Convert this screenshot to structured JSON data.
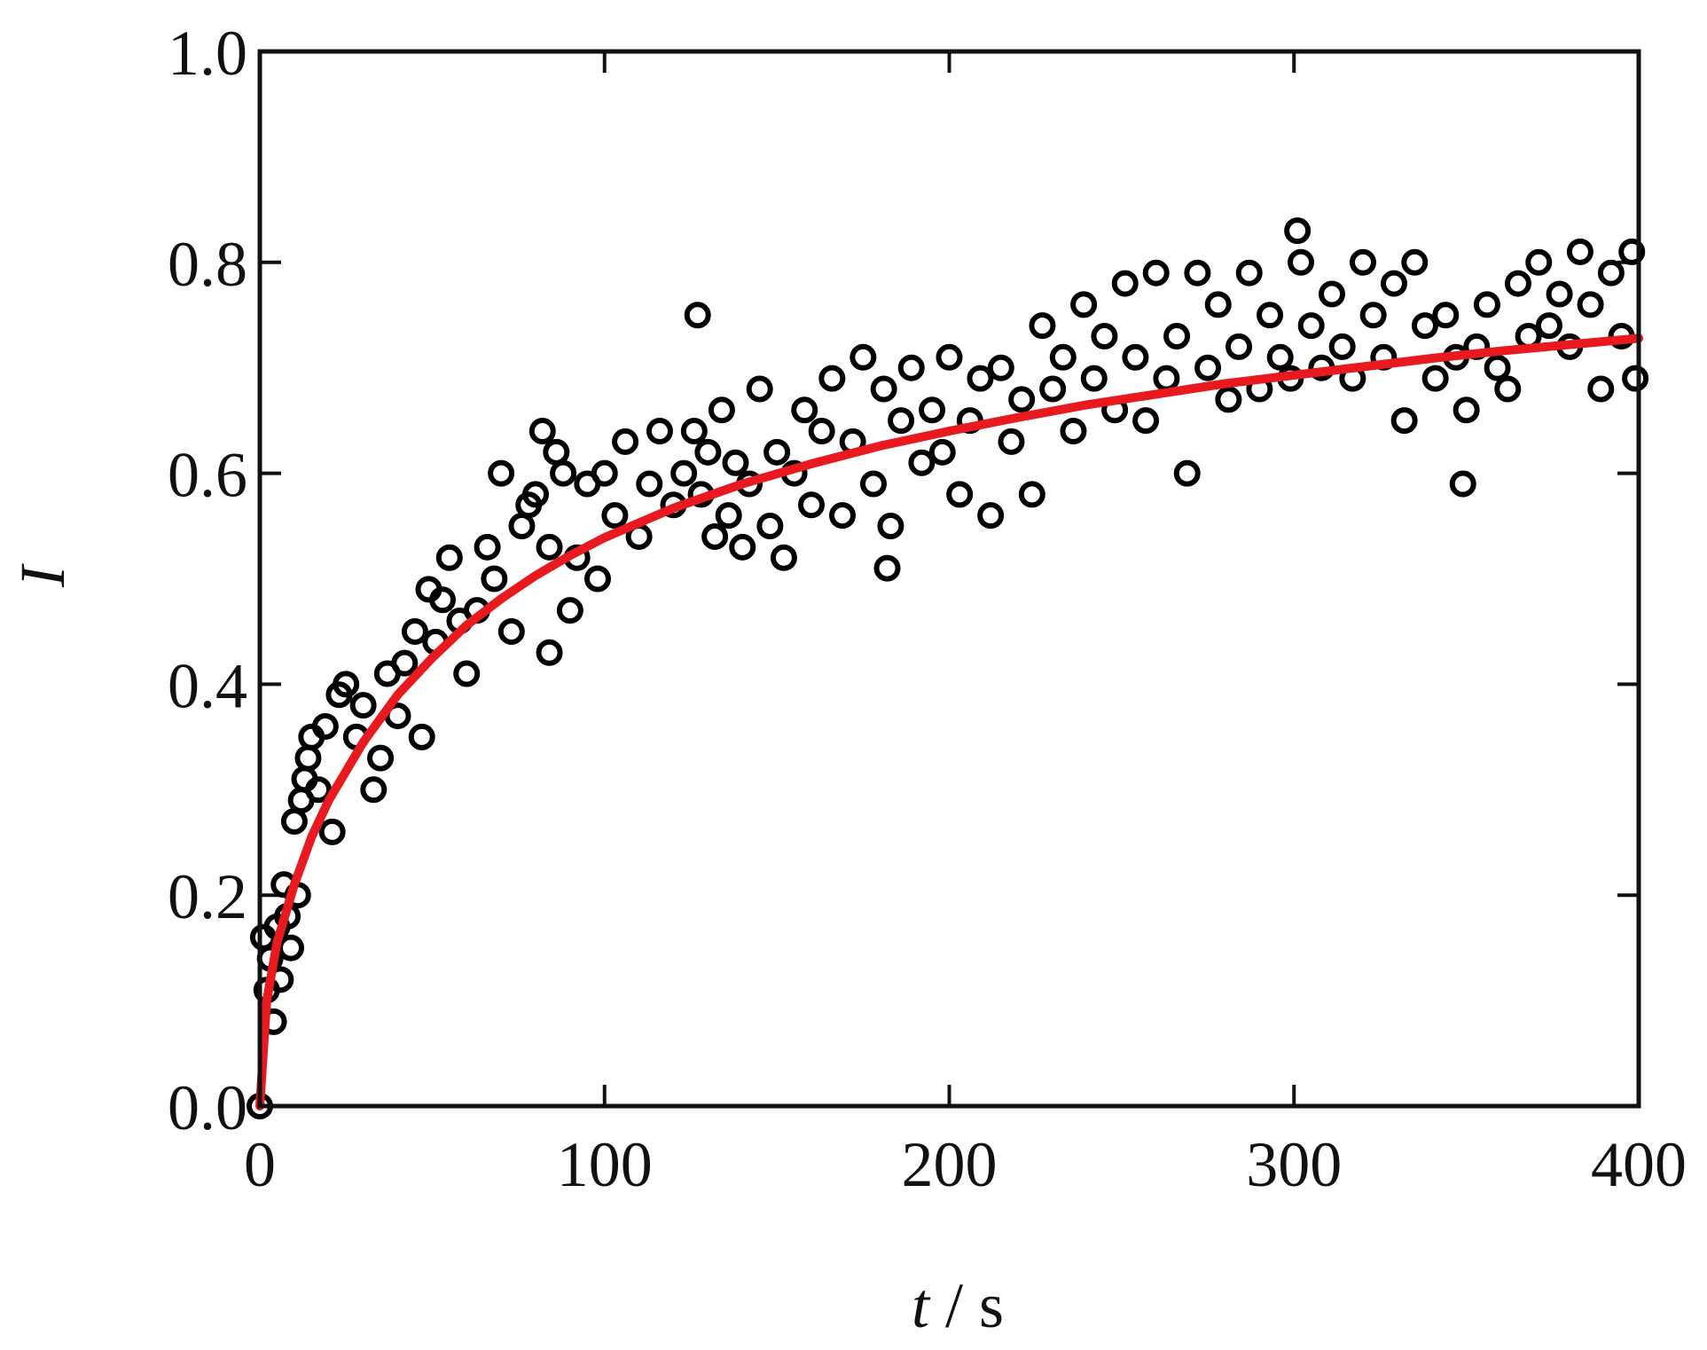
{
  "chart_data": {
    "type": "scatter",
    "xlabel_parts": [
      "t",
      " / ",
      "s"
    ],
    "ylabel": "I",
    "xlim": [
      0,
      400
    ],
    "ylim": [
      0.0,
      1.0
    ],
    "x_ticks": [
      0,
      100,
      200,
      300,
      400
    ],
    "x_tick_labels": [
      "0",
      "100",
      "200",
      "300",
      "400"
    ],
    "y_ticks": [
      0.0,
      0.2,
      0.4,
      0.6,
      0.8,
      1.0
    ],
    "y_tick_labels": [
      "0.0",
      "0.2",
      "0.4",
      "0.6",
      "0.8",
      "1.0"
    ],
    "grid": false,
    "colors": {
      "points": "#000000",
      "fit": "#e8191f",
      "axes": "#111111"
    },
    "series": [
      {
        "type": "scatter",
        "marker": "open-circle",
        "x": [
          0,
          1,
          2,
          3,
          4,
          5,
          6,
          7,
          8,
          9,
          10,
          11,
          12,
          13,
          14,
          15,
          17,
          19,
          21,
          23,
          25,
          28,
          30,
          33,
          35,
          37,
          40,
          42,
          45,
          47,
          49,
          51,
          53,
          55,
          58,
          60,
          63,
          66,
          68,
          70,
          73,
          76,
          78,
          80,
          82,
          84,
          86,
          88,
          90,
          92,
          95,
          98,
          100,
          103,
          106,
          110,
          113,
          116,
          120,
          123,
          126,
          128,
          130,
          132,
          134,
          136,
          138,
          140,
          142,
          145,
          148,
          150,
          152,
          155,
          158,
          160,
          163,
          166,
          169,
          172,
          175,
          178,
          181,
          183,
          186,
          189,
          192,
          195,
          198,
          200,
          203,
          206,
          209,
          212,
          215,
          218,
          221,
          224,
          227,
          230,
          233,
          236,
          239,
          242,
          245,
          248,
          251,
          254,
          257,
          260,
          263,
          266,
          269,
          272,
          275,
          278,
          281,
          284,
          287,
          290,
          293,
          296,
          299,
          302,
          305,
          308,
          311,
          314,
          317,
          320,
          323,
          326,
          329,
          332,
          335,
          338,
          341,
          344,
          347,
          350,
          353,
          356,
          359,
          362,
          365,
          368,
          371,
          374,
          377,
          380,
          383,
          386,
          389,
          392,
          395,
          398,
          399,
          127,
          182,
          84,
          301,
          349
        ],
        "y": [
          0.0,
          0.16,
          0.11,
          0.14,
          0.08,
          0.17,
          0.12,
          0.21,
          0.18,
          0.15,
          0.27,
          0.2,
          0.29,
          0.31,
          0.33,
          0.35,
          0.3,
          0.36,
          0.26,
          0.39,
          0.4,
          0.35,
          0.38,
          0.3,
          0.33,
          0.41,
          0.37,
          0.42,
          0.45,
          0.35,
          0.49,
          0.44,
          0.48,
          0.52,
          0.46,
          0.41,
          0.47,
          0.53,
          0.5,
          0.6,
          0.45,
          0.55,
          0.57,
          0.58,
          0.64,
          0.53,
          0.62,
          0.6,
          0.47,
          0.52,
          0.59,
          0.5,
          0.6,
          0.56,
          0.63,
          0.54,
          0.59,
          0.64,
          0.57,
          0.6,
          0.64,
          0.58,
          0.62,
          0.54,
          0.66,
          0.56,
          0.61,
          0.53,
          0.59,
          0.68,
          0.55,
          0.62,
          0.52,
          0.6,
          0.66,
          0.57,
          0.64,
          0.69,
          0.56,
          0.63,
          0.71,
          0.59,
          0.68,
          0.55,
          0.65,
          0.7,
          0.61,
          0.66,
          0.62,
          0.71,
          0.58,
          0.65,
          0.69,
          0.56,
          0.7,
          0.63,
          0.67,
          0.58,
          0.74,
          0.68,
          0.71,
          0.64,
          0.76,
          0.69,
          0.73,
          0.66,
          0.78,
          0.71,
          0.65,
          0.79,
          0.69,
          0.73,
          0.6,
          0.79,
          0.7,
          0.76,
          0.67,
          0.72,
          0.79,
          0.68,
          0.75,
          0.71,
          0.69,
          0.8,
          0.74,
          0.7,
          0.77,
          0.72,
          0.69,
          0.8,
          0.75,
          0.71,
          0.78,
          0.65,
          0.8,
          0.74,
          0.69,
          0.75,
          0.71,
          0.66,
          0.72,
          0.76,
          0.7,
          0.68,
          0.78,
          0.73,
          0.8,
          0.74,
          0.77,
          0.72,
          0.81,
          0.76,
          0.68,
          0.79,
          0.73,
          0.81,
          0.69,
          0.75,
          0.51,
          0.43,
          0.83,
          0.59
        ]
      },
      {
        "type": "line",
        "x": [
          0,
          2,
          5,
          10,
          15,
          20,
          30,
          40,
          50,
          60,
          70,
          80,
          90,
          100,
          120,
          140,
          160,
          180,
          200,
          220,
          240,
          260,
          280,
          300,
          320,
          340,
          360,
          380,
          400
        ],
        "y": [
          0.0,
          0.1,
          0.155,
          0.21,
          0.255,
          0.29,
          0.345,
          0.39,
          0.425,
          0.456,
          0.481,
          0.503,
          0.522,
          0.539,
          0.567,
          0.59,
          0.609,
          0.626,
          0.64,
          0.653,
          0.665,
          0.675,
          0.685,
          0.693,
          0.701,
          0.709,
          0.716,
          0.722,
          0.728
        ]
      }
    ]
  }
}
